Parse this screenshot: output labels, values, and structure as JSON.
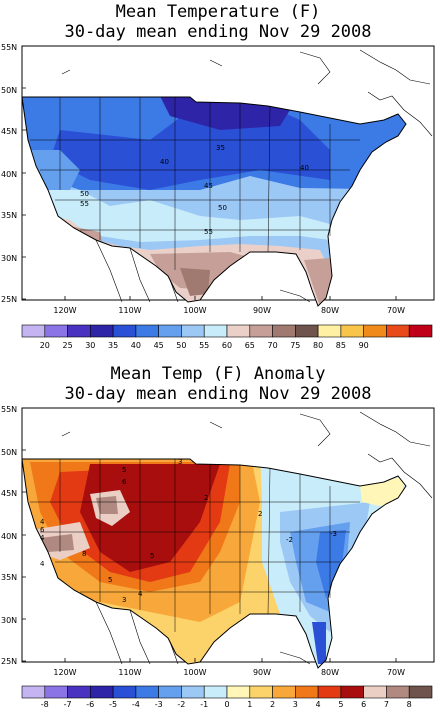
{
  "map1": {
    "title_line1": "Mean Temperature (F)",
    "title_line2": "30-day mean ending Nov 29 2008",
    "lat_labels": [
      "55N",
      "50N",
      "45N",
      "40N",
      "35N",
      "30N",
      "25N"
    ],
    "lon_labels": [
      "120W",
      "110W",
      "100W",
      "90W",
      "80W",
      "70W"
    ],
    "contour_labels": [
      {
        "text": "35"
      },
      {
        "text": "40"
      },
      {
        "text": "40"
      },
      {
        "text": "45"
      },
      {
        "text": "50"
      },
      {
        "text": "50"
      },
      {
        "text": "55"
      },
      {
        "text": "55"
      }
    ],
    "legend": {
      "values": [
        "20",
        "25",
        "30",
        "35",
        "40",
        "45",
        "50",
        "55",
        "60",
        "65",
        "70",
        "75",
        "80",
        "85",
        "90"
      ],
      "colors": [
        "#c4b4f2",
        "#8a74e6",
        "#4a32c0",
        "#2e24a8",
        "#2a50d6",
        "#3c7ae6",
        "#64a0ee",
        "#9cc8f6",
        "#c8ecfa",
        "#ead0c8",
        "#c6a098",
        "#a07a70",
        "#6e544c",
        "#fff0a4",
        "#f8c44a",
        "#f08a1a",
        "#e84a1a",
        "#c00018"
      ]
    }
  },
  "map2": {
    "title_line1": "Mean Temp (F) Anomaly",
    "title_line2": "30-day mean ending Nov 29 2008",
    "lat_labels": [
      "55N",
      "50N",
      "45N",
      "40N",
      "35N",
      "30N",
      "25N"
    ],
    "lon_labels": [
      "120W",
      "110W",
      "100W",
      "90W",
      "80W",
      "70W"
    ],
    "contour_labels": [
      {
        "text": "3"
      },
      {
        "text": "5"
      },
      {
        "text": "6"
      },
      {
        "text": "2"
      },
      {
        "text": "4"
      },
      {
        "text": "6"
      },
      {
        "text": "4"
      },
      {
        "text": "8"
      },
      {
        "text": "4"
      },
      {
        "text": "5"
      },
      {
        "text": "5"
      },
      {
        "text": "3"
      },
      {
        "text": "4"
      },
      {
        "text": "2"
      },
      {
        "text": "-2"
      },
      {
        "text": "-3"
      }
    ],
    "legend": {
      "values": [
        "-8",
        "-7",
        "-6",
        "-5",
        "-4",
        "-3",
        "-2",
        "-1",
        "0",
        "1",
        "2",
        "3",
        "4",
        "5",
        "6",
        "7",
        "8"
      ],
      "colors": [
        "#c4b4f2",
        "#8a74e6",
        "#4a32c0",
        "#2e24a8",
        "#2a50d6",
        "#3c7ae6",
        "#64a0ee",
        "#9cc8f6",
        "#c8ecfa",
        "#fff6b8",
        "#fcd26a",
        "#f8a83a",
        "#f07818",
        "#e43a14",
        "#a80e0e",
        "#eccfc4",
        "#b08a80",
        "#6e544c"
      ]
    }
  }
}
